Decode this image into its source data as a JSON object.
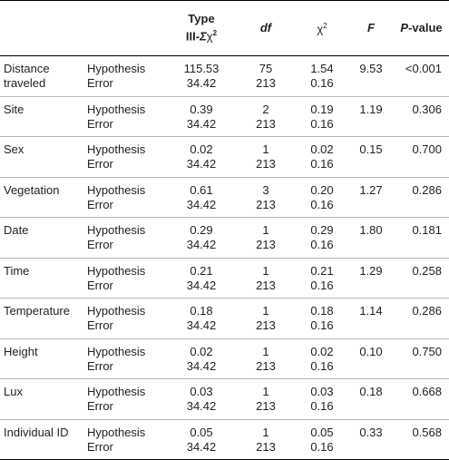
{
  "headers": {
    "variable": "",
    "effect": "",
    "ss_line1": "Type",
    "ss_line2": "III-",
    "ss_sigma": "Σ",
    "ss_chi": "χ",
    "ss_sup": "2",
    "df": "df",
    "chi": "χ",
    "chi_sup": "2",
    "f": "F",
    "p_italic": "P",
    "p_rest": "-value"
  },
  "rows": [
    {
      "variable": "Distance traveled",
      "hyp": {
        "effect": "Hypothesis",
        "ss": "115.53",
        "df": "75",
        "chi": "1.54",
        "f": "9.53",
        "p": "<0.001"
      },
      "err": {
        "effect": "Error",
        "ss": "34.42",
        "df": "213",
        "chi": "0.16"
      }
    },
    {
      "variable": "Site",
      "hyp": {
        "effect": "Hypothesis",
        "ss": "0.39",
        "df": "2",
        "chi": "0.19",
        "f": "1.19",
        "p": "0.306"
      },
      "err": {
        "effect": "Error",
        "ss": "34.42",
        "df": "213",
        "chi": "0.16"
      }
    },
    {
      "variable": "Sex",
      "hyp": {
        "effect": "Hypothesis",
        "ss": "0.02",
        "df": "1",
        "chi": "0.02",
        "f": "0.15",
        "p": "0.700"
      },
      "err": {
        "effect": "Error",
        "ss": "34.42",
        "df": "213",
        "chi": "0.16"
      }
    },
    {
      "variable": "Vegetation",
      "hyp": {
        "effect": "Hypothesis",
        "ss": "0.61",
        "df": "3",
        "chi": "0.20",
        "f": "1.27",
        "p": "0.286"
      },
      "err": {
        "effect": "Error",
        "ss": "34.42",
        "df": "213",
        "chi": "0.16"
      }
    },
    {
      "variable": "Date",
      "hyp": {
        "effect": "Hypothesis",
        "ss": "0.29",
        "df": "1",
        "chi": "0.29",
        "f": "1.80",
        "p": "0.181"
      },
      "err": {
        "effect": "Error",
        "ss": "34.42",
        "df": "213",
        "chi": "0.16"
      }
    },
    {
      "variable": "Time",
      "hyp": {
        "effect": "Hypothesis",
        "ss": "0.21",
        "df": "1",
        "chi": "0.21",
        "f": "1.29",
        "p": "0.258"
      },
      "err": {
        "effect": "Error",
        "ss": "34.42",
        "df": "213",
        "chi": "0.16"
      }
    },
    {
      "variable": "Temperature",
      "hyp": {
        "effect": "Hypothesis",
        "ss": "0.18",
        "df": "1",
        "chi": "0.18",
        "f": "1.14",
        "p": "0.286"
      },
      "err": {
        "effect": "Error",
        "ss": "34.42",
        "df": "213",
        "chi": "0.16"
      }
    },
    {
      "variable": "Height",
      "hyp": {
        "effect": "Hypothesis",
        "ss": "0.02",
        "df": "1",
        "chi": "0.02",
        "f": "0.10",
        "p": "0.750"
      },
      "err": {
        "effect": "Error",
        "ss": "34.42",
        "df": "213",
        "chi": "0.16"
      }
    },
    {
      "variable": "Lux",
      "hyp": {
        "effect": "Hypothesis",
        "ss": "0.03",
        "df": "1",
        "chi": "0.03",
        "f": "0.18",
        "p": "0.668"
      },
      "err": {
        "effect": "Error",
        "ss": "34.42",
        "df": "213",
        "chi": "0.16"
      }
    },
    {
      "variable": "Individual ID",
      "hyp": {
        "effect": "Hypothesis",
        "ss": "0.05",
        "df": "1",
        "chi": "0.05",
        "f": "0.33",
        "p": "0.568"
      },
      "err": {
        "effect": "Error",
        "ss": "34.42",
        "df": "213",
        "chi": "0.16"
      }
    }
  ]
}
